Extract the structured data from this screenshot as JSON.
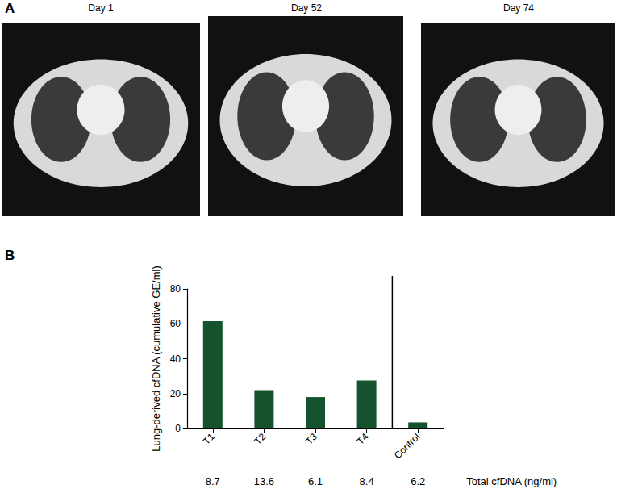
{
  "panel_labels": [
    "A",
    "B"
  ],
  "ct_images": [
    {
      "label": "Day 1"
    },
    {
      "label": "Day 52"
    },
    {
      "label": "Day 74"
    }
  ],
  "chart_data": {
    "type": "bar",
    "y_label": "Lung-derived cfDNA (cumulative GE/ml)",
    "categories": [
      "T1",
      "T2",
      "T3",
      "T4",
      "Control"
    ],
    "values": [
      61.5,
      22,
      18,
      27.5,
      3.5
    ],
    "color": "#14532d",
    "ylim": [
      0,
      80
    ],
    "yticks": [
      0,
      20,
      40,
      60,
      80
    ],
    "grid": false,
    "total_cfdna": {
      "label": "Total cfDNA (ng/ml)",
      "values": [
        8.7,
        13.6,
        6.1,
        8.4,
        6.2
      ]
    }
  }
}
